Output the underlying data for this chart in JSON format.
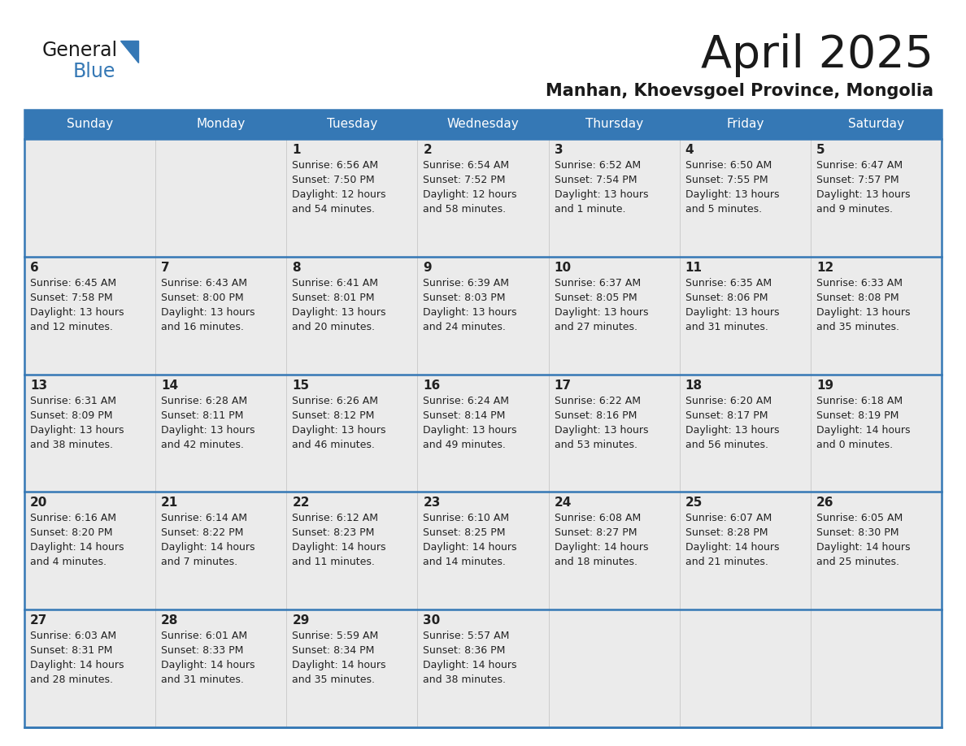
{
  "title": "April 2025",
  "subtitle": "Manhan, Khoevsgoel Province, Mongolia",
  "days_of_week": [
    "Sunday",
    "Monday",
    "Tuesday",
    "Wednesday",
    "Thursday",
    "Friday",
    "Saturday"
  ],
  "header_bg_color": "#3578b5",
  "header_text_color": "#ffffff",
  "cell_bg_color": "#ebebeb",
  "cell_bg_color2": "#f5f5f5",
  "border_color": "#3578b5",
  "title_color": "#1a1a1a",
  "subtitle_color": "#1a1a1a",
  "day_number_color": "#222222",
  "cell_text_color": "#222222",
  "logo_general_color": "#1a1a1a",
  "logo_blue_color": "#3578b5",
  "logo_triangle_color": "#3578b5",
  "calendar_data": [
    [
      {
        "day": "",
        "sunrise": "",
        "sunset": "",
        "daylight": ""
      },
      {
        "day": "",
        "sunrise": "",
        "sunset": "",
        "daylight": ""
      },
      {
        "day": "1",
        "sunrise": "Sunrise: 6:56 AM",
        "sunset": "Sunset: 7:50 PM",
        "daylight": "Daylight: 12 hours\nand 54 minutes."
      },
      {
        "day": "2",
        "sunrise": "Sunrise: 6:54 AM",
        "sunset": "Sunset: 7:52 PM",
        "daylight": "Daylight: 12 hours\nand 58 minutes."
      },
      {
        "day": "3",
        "sunrise": "Sunrise: 6:52 AM",
        "sunset": "Sunset: 7:54 PM",
        "daylight": "Daylight: 13 hours\nand 1 minute."
      },
      {
        "day": "4",
        "sunrise": "Sunrise: 6:50 AM",
        "sunset": "Sunset: 7:55 PM",
        "daylight": "Daylight: 13 hours\nand 5 minutes."
      },
      {
        "day": "5",
        "sunrise": "Sunrise: 6:47 AM",
        "sunset": "Sunset: 7:57 PM",
        "daylight": "Daylight: 13 hours\nand 9 minutes."
      }
    ],
    [
      {
        "day": "6",
        "sunrise": "Sunrise: 6:45 AM",
        "sunset": "Sunset: 7:58 PM",
        "daylight": "Daylight: 13 hours\nand 12 minutes."
      },
      {
        "day": "7",
        "sunrise": "Sunrise: 6:43 AM",
        "sunset": "Sunset: 8:00 PM",
        "daylight": "Daylight: 13 hours\nand 16 minutes."
      },
      {
        "day": "8",
        "sunrise": "Sunrise: 6:41 AM",
        "sunset": "Sunset: 8:01 PM",
        "daylight": "Daylight: 13 hours\nand 20 minutes."
      },
      {
        "day": "9",
        "sunrise": "Sunrise: 6:39 AM",
        "sunset": "Sunset: 8:03 PM",
        "daylight": "Daylight: 13 hours\nand 24 minutes."
      },
      {
        "day": "10",
        "sunrise": "Sunrise: 6:37 AM",
        "sunset": "Sunset: 8:05 PM",
        "daylight": "Daylight: 13 hours\nand 27 minutes."
      },
      {
        "day": "11",
        "sunrise": "Sunrise: 6:35 AM",
        "sunset": "Sunset: 8:06 PM",
        "daylight": "Daylight: 13 hours\nand 31 minutes."
      },
      {
        "day": "12",
        "sunrise": "Sunrise: 6:33 AM",
        "sunset": "Sunset: 8:08 PM",
        "daylight": "Daylight: 13 hours\nand 35 minutes."
      }
    ],
    [
      {
        "day": "13",
        "sunrise": "Sunrise: 6:31 AM",
        "sunset": "Sunset: 8:09 PM",
        "daylight": "Daylight: 13 hours\nand 38 minutes."
      },
      {
        "day": "14",
        "sunrise": "Sunrise: 6:28 AM",
        "sunset": "Sunset: 8:11 PM",
        "daylight": "Daylight: 13 hours\nand 42 minutes."
      },
      {
        "day": "15",
        "sunrise": "Sunrise: 6:26 AM",
        "sunset": "Sunset: 8:12 PM",
        "daylight": "Daylight: 13 hours\nand 46 minutes."
      },
      {
        "day": "16",
        "sunrise": "Sunrise: 6:24 AM",
        "sunset": "Sunset: 8:14 PM",
        "daylight": "Daylight: 13 hours\nand 49 minutes."
      },
      {
        "day": "17",
        "sunrise": "Sunrise: 6:22 AM",
        "sunset": "Sunset: 8:16 PM",
        "daylight": "Daylight: 13 hours\nand 53 minutes."
      },
      {
        "day": "18",
        "sunrise": "Sunrise: 6:20 AM",
        "sunset": "Sunset: 8:17 PM",
        "daylight": "Daylight: 13 hours\nand 56 minutes."
      },
      {
        "day": "19",
        "sunrise": "Sunrise: 6:18 AM",
        "sunset": "Sunset: 8:19 PM",
        "daylight": "Daylight: 14 hours\nand 0 minutes."
      }
    ],
    [
      {
        "day": "20",
        "sunrise": "Sunrise: 6:16 AM",
        "sunset": "Sunset: 8:20 PM",
        "daylight": "Daylight: 14 hours\nand 4 minutes."
      },
      {
        "day": "21",
        "sunrise": "Sunrise: 6:14 AM",
        "sunset": "Sunset: 8:22 PM",
        "daylight": "Daylight: 14 hours\nand 7 minutes."
      },
      {
        "day": "22",
        "sunrise": "Sunrise: 6:12 AM",
        "sunset": "Sunset: 8:23 PM",
        "daylight": "Daylight: 14 hours\nand 11 minutes."
      },
      {
        "day": "23",
        "sunrise": "Sunrise: 6:10 AM",
        "sunset": "Sunset: 8:25 PM",
        "daylight": "Daylight: 14 hours\nand 14 minutes."
      },
      {
        "day": "24",
        "sunrise": "Sunrise: 6:08 AM",
        "sunset": "Sunset: 8:27 PM",
        "daylight": "Daylight: 14 hours\nand 18 minutes."
      },
      {
        "day": "25",
        "sunrise": "Sunrise: 6:07 AM",
        "sunset": "Sunset: 8:28 PM",
        "daylight": "Daylight: 14 hours\nand 21 minutes."
      },
      {
        "day": "26",
        "sunrise": "Sunrise: 6:05 AM",
        "sunset": "Sunset: 8:30 PM",
        "daylight": "Daylight: 14 hours\nand 25 minutes."
      }
    ],
    [
      {
        "day": "27",
        "sunrise": "Sunrise: 6:03 AM",
        "sunset": "Sunset: 8:31 PM",
        "daylight": "Daylight: 14 hours\nand 28 minutes."
      },
      {
        "day": "28",
        "sunrise": "Sunrise: 6:01 AM",
        "sunset": "Sunset: 8:33 PM",
        "daylight": "Daylight: 14 hours\nand 31 minutes."
      },
      {
        "day": "29",
        "sunrise": "Sunrise: 5:59 AM",
        "sunset": "Sunset: 8:34 PM",
        "daylight": "Daylight: 14 hours\nand 35 minutes."
      },
      {
        "day": "30",
        "sunrise": "Sunrise: 5:57 AM",
        "sunset": "Sunset: 8:36 PM",
        "daylight": "Daylight: 14 hours\nand 38 minutes."
      },
      {
        "day": "",
        "sunrise": "",
        "sunset": "",
        "daylight": ""
      },
      {
        "day": "",
        "sunrise": "",
        "sunset": "",
        "daylight": ""
      },
      {
        "day": "",
        "sunrise": "",
        "sunset": "",
        "daylight": ""
      }
    ]
  ]
}
